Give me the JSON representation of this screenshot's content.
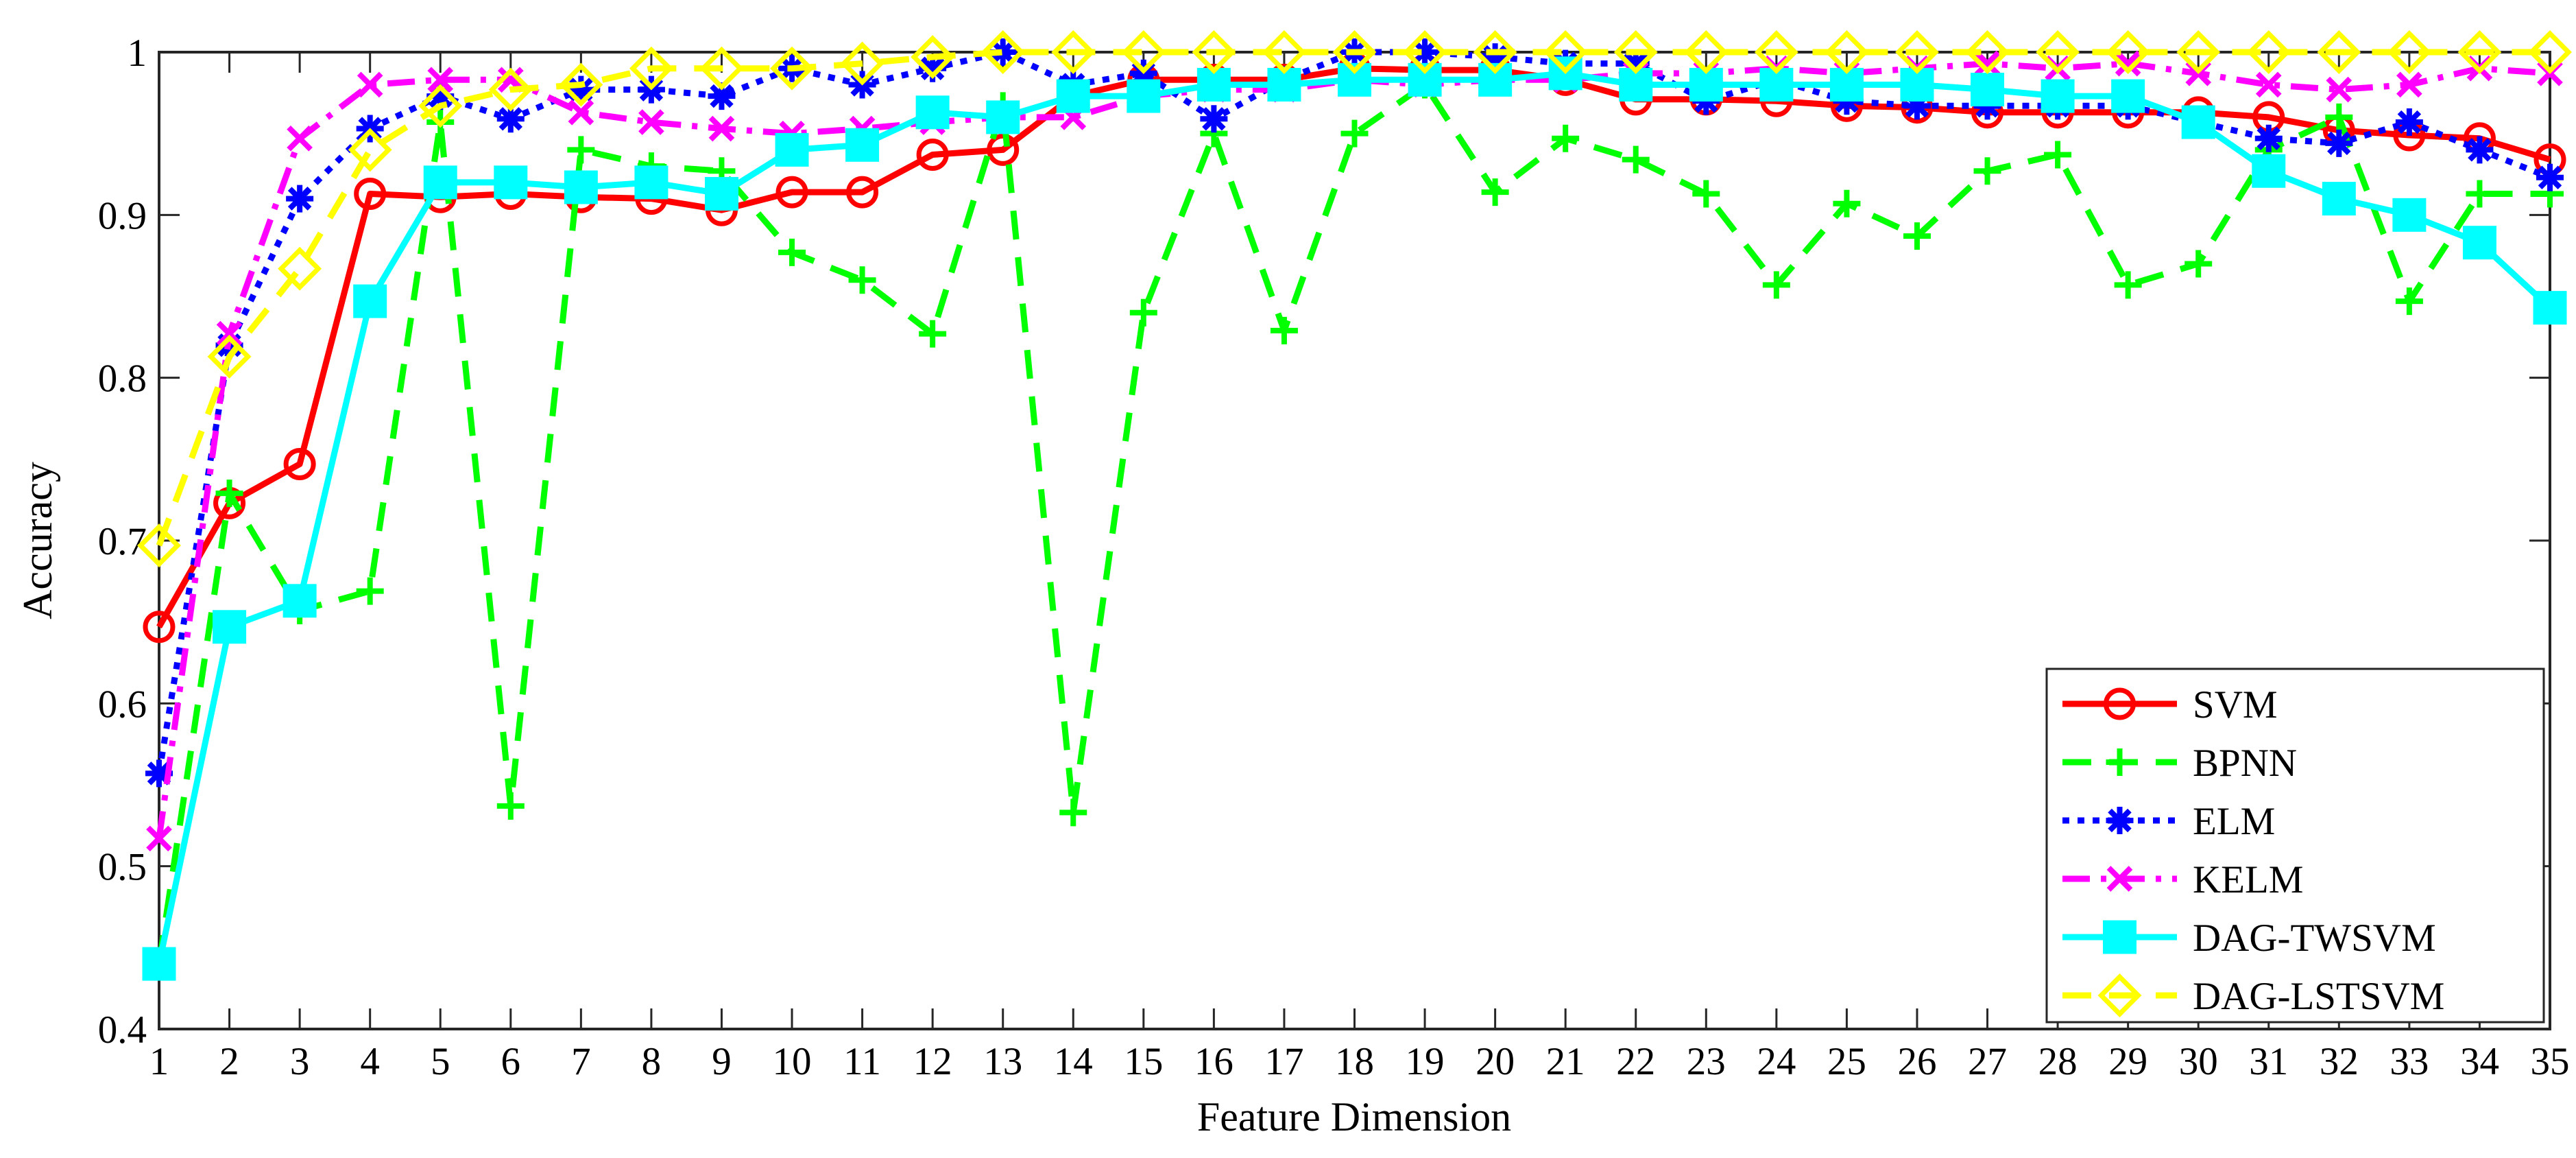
{
  "chart_data": {
    "type": "line",
    "title": "",
    "xlabel": "Feature Dimension",
    "ylabel": "Accuracy",
    "xlim": [
      1,
      35
    ],
    "ylim": [
      0.4,
      1
    ],
    "x": [
      1,
      2,
      3,
      4,
      5,
      6,
      7,
      8,
      9,
      10,
      11,
      12,
      13,
      14,
      15,
      16,
      17,
      18,
      19,
      20,
      21,
      22,
      23,
      24,
      25,
      26,
      27,
      28,
      29,
      30,
      31,
      32,
      33,
      34,
      35
    ],
    "xticks": [
      "1",
      "2",
      "3",
      "4",
      "5",
      "6",
      "7",
      "8",
      "9",
      "10",
      "11",
      "12",
      "13",
      "14",
      "15",
      "16",
      "17",
      "18",
      "19",
      "20",
      "21",
      "22",
      "23",
      "24",
      "25",
      "26",
      "27",
      "28",
      "29",
      "30",
      "31",
      "32",
      "33",
      "34",
      "35"
    ],
    "yticks": [
      "0.4",
      "0.5",
      "0.6",
      "0.7",
      "0.8",
      "0.9",
      "1"
    ],
    "yticks_values": [
      0.4,
      0.5,
      0.6,
      0.7,
      0.8,
      0.9,
      1.0
    ],
    "grid": false,
    "legend_position": "bottom-right",
    "series": [
      {
        "name": "SVM",
        "color": "#ff0000",
        "dash": "solid",
        "marker": "circle",
        "values": [
          0.647,
          0.723,
          0.747,
          0.913,
          0.911,
          0.913,
          0.911,
          0.91,
          0.903,
          0.914,
          0.914,
          0.937,
          0.94,
          0.973,
          0.983,
          0.983,
          0.983,
          0.99,
          0.989,
          0.989,
          0.983,
          0.971,
          0.971,
          0.97,
          0.967,
          0.966,
          0.963,
          0.963,
          0.963,
          0.963,
          0.96,
          0.952,
          0.949,
          0.947,
          0.934
        ]
      },
      {
        "name": "BPNN",
        "color": "#00ff00",
        "dash": "dashed",
        "marker": "plus",
        "values": [
          0.44,
          0.729,
          0.657,
          0.669,
          0.957,
          0.537,
          0.94,
          0.93,
          0.927,
          0.877,
          0.86,
          0.827,
          0.967,
          0.533,
          0.84,
          0.95,
          0.829,
          0.95,
          0.98,
          0.914,
          0.947,
          0.934,
          0.913,
          0.857,
          0.907,
          0.887,
          0.927,
          0.937,
          0.857,
          0.87,
          0.94,
          0.96,
          0.847,
          0.913,
          0.913
        ]
      },
      {
        "name": "ELM",
        "color": "#0000ff",
        "dash": "dotted",
        "marker": "asterisk",
        "values": [
          0.557,
          0.82,
          0.91,
          0.953,
          0.973,
          0.959,
          0.977,
          0.977,
          0.973,
          0.99,
          0.98,
          0.99,
          1.0,
          0.98,
          0.987,
          0.959,
          0.983,
          1.0,
          1.0,
          0.997,
          0.993,
          0.993,
          0.97,
          0.983,
          0.97,
          0.967,
          0.967,
          0.967,
          0.967,
          0.957,
          0.947,
          0.944,
          0.957,
          0.94,
          0.923
        ]
      },
      {
        "name": "KELM",
        "color": "#ff00ff",
        "dash": "dashdot",
        "marker": "x",
        "values": [
          0.517,
          0.827,
          0.947,
          0.98,
          0.983,
          0.983,
          0.963,
          0.957,
          0.953,
          0.95,
          0.953,
          0.957,
          0.96,
          0.96,
          0.973,
          0.977,
          0.977,
          0.983,
          0.98,
          0.983,
          0.983,
          0.987,
          0.987,
          0.99,
          0.987,
          0.99,
          0.993,
          0.99,
          0.993,
          0.987,
          0.98,
          0.977,
          0.98,
          0.99,
          0.987
        ]
      },
      {
        "name": "DAG-TWSVM",
        "color": "#00ffff",
        "dash": "solid",
        "marker": "square",
        "values": [
          0.44,
          0.647,
          0.663,
          0.847,
          0.92,
          0.92,
          0.917,
          0.92,
          0.913,
          0.94,
          0.943,
          0.963,
          0.96,
          0.973,
          0.973,
          0.98,
          0.98,
          0.983,
          0.983,
          0.983,
          0.987,
          0.98,
          0.98,
          0.98,
          0.98,
          0.98,
          0.977,
          0.973,
          0.973,
          0.957,
          0.927,
          0.91,
          0.9,
          0.883,
          0.843
        ]
      },
      {
        "name": "DAG-LSTSVM",
        "color": "#ffff00",
        "dash": "dashed",
        "marker": "diamond",
        "values": [
          0.697,
          0.813,
          0.867,
          0.94,
          0.967,
          0.977,
          0.98,
          0.99,
          0.99,
          0.99,
          0.993,
          0.997,
          1.0,
          1.0,
          1.0,
          1.0,
          1.0,
          1.0,
          1.0,
          1.0,
          1.0,
          1.0,
          1.0,
          1.0,
          1.0,
          1.0,
          1.0,
          1.0,
          1.0,
          1.0,
          1.0,
          1.0,
          1.0,
          1.0,
          1.0
        ]
      }
    ]
  }
}
